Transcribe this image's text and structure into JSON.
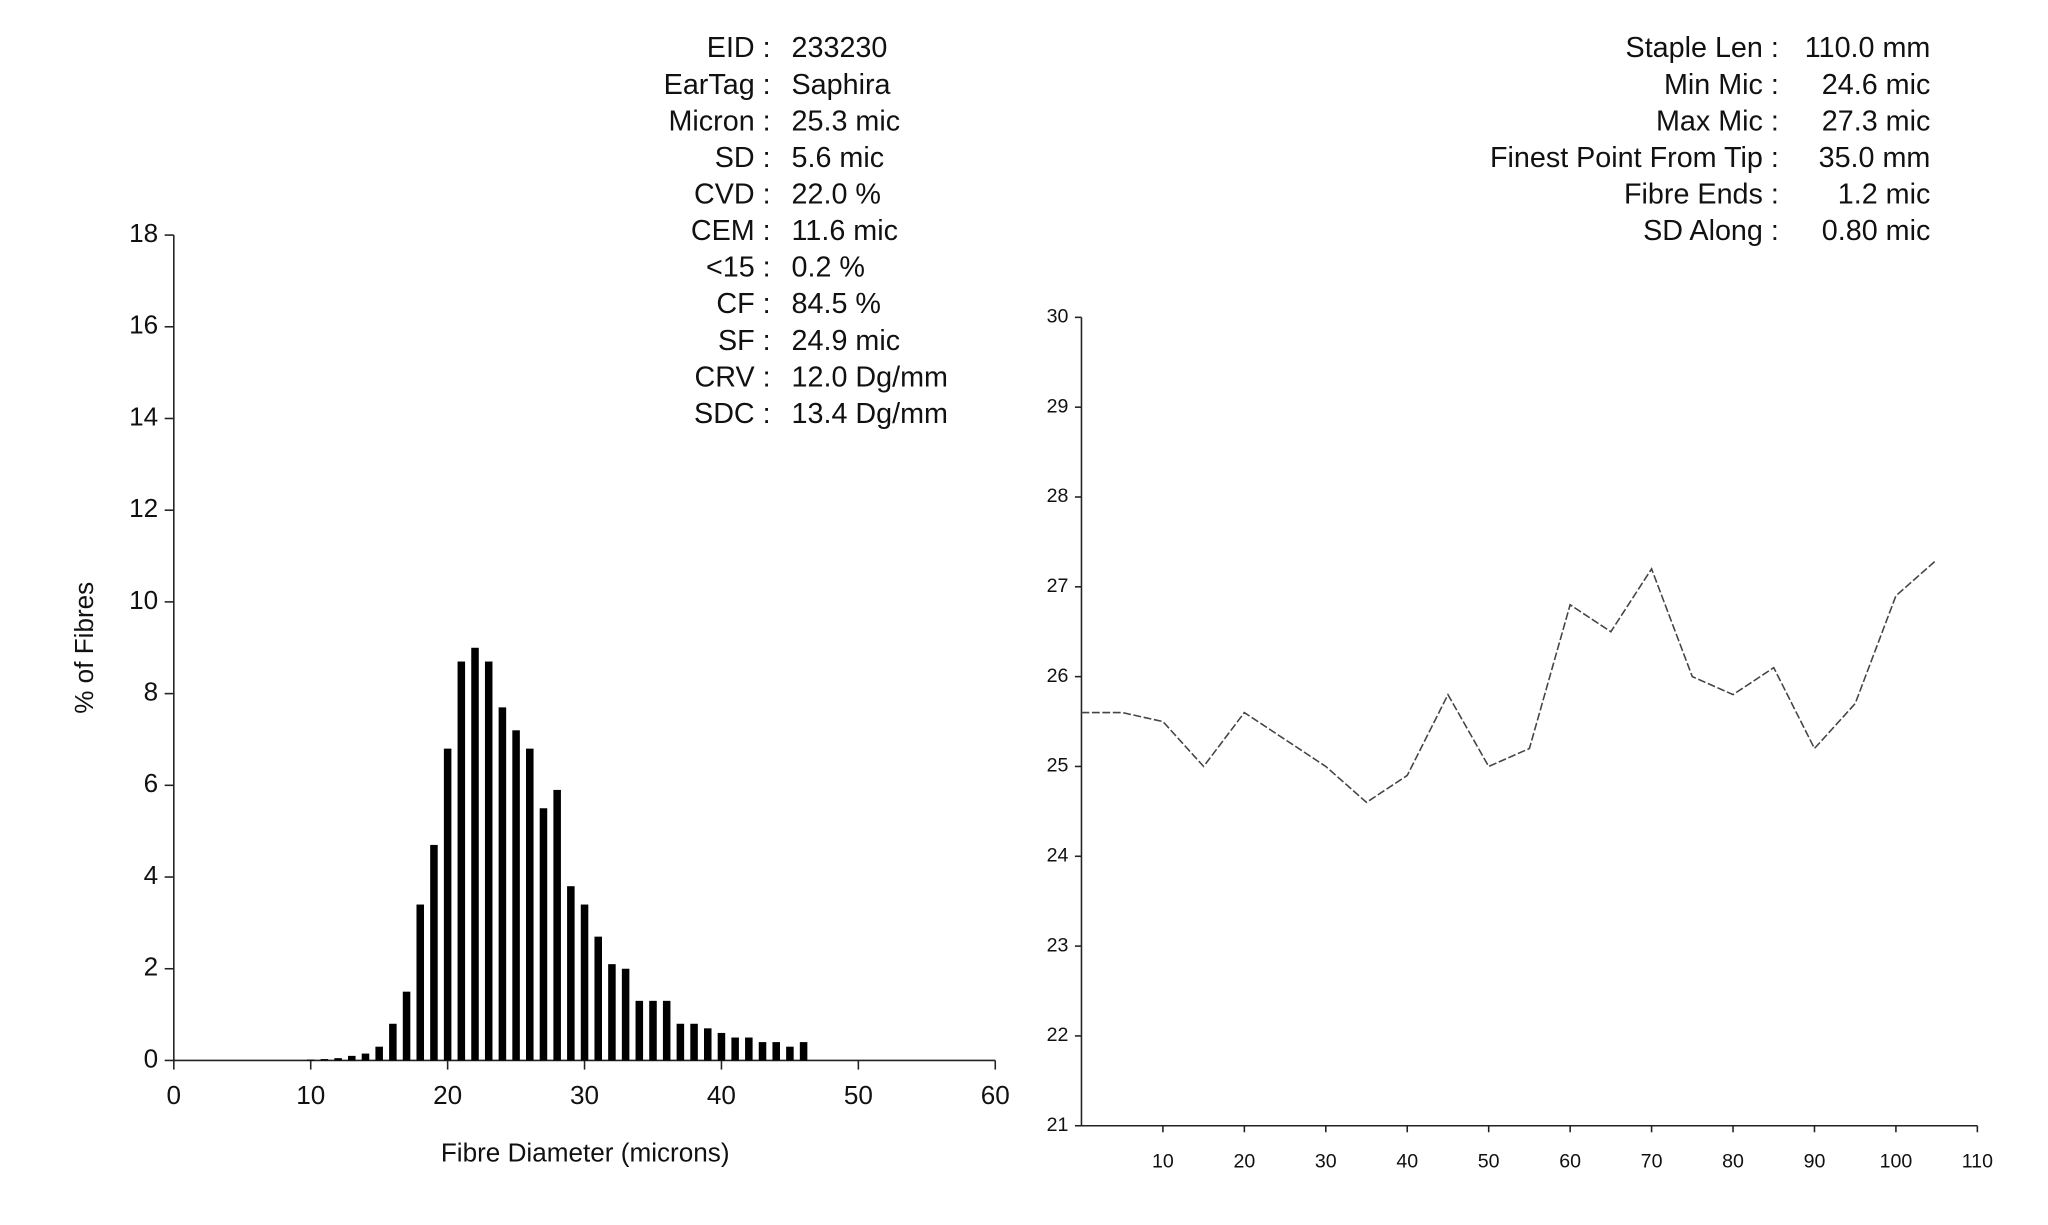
{
  "chart_data": [
    {
      "type": "histogram",
      "annotations": [
        {
          "label": "EID :",
          "value": "233230"
        },
        {
          "label": "EarTag :",
          "value": "Saphira"
        },
        {
          "label": "Micron :",
          "value": "25.3 mic"
        },
        {
          "label": "SD :",
          "value": "5.6 mic"
        },
        {
          "label": "CVD :",
          "value": "22.0 %"
        },
        {
          "label": "CEM :",
          "value": "11.6 mic"
        },
        {
          "label": "<15 :",
          "value": "0.2 %"
        },
        {
          "label": "CF :",
          "value": "84.5 %"
        },
        {
          "label": "SF :",
          "value": "24.9 mic"
        },
        {
          "label": "CRV :",
          "value": "12.0 Dg/mm"
        },
        {
          "label": "SDC :",
          "value": "13.4 Dg/mm"
        }
      ],
      "x_label": "Fibre Diameter (microns)",
      "y_label": "% of Fibres",
      "bins": [
        9.5,
        10.5,
        11.5,
        12.5,
        13.5,
        14.5,
        15.5,
        16.5,
        17.5,
        18.5,
        19.5,
        20.5,
        21.5,
        22.5,
        23.5,
        24.5,
        25.5,
        26.5,
        27.5,
        28.5,
        29.5,
        30.5,
        31.5,
        32.5,
        33.5,
        34.5,
        35.5,
        36.5,
        37.5,
        38.5,
        39.5,
        40.5,
        41.5,
        42.5,
        43.5,
        44.5,
        45.5,
        46.5
      ],
      "values": [
        0.02,
        0.03,
        0.05,
        0.1,
        0.15,
        0.3,
        0.8,
        1.5,
        3.4,
        4.7,
        6.8,
        8.7,
        9.0,
        8.7,
        7.7,
        7.2,
        6.8,
        5.5,
        5.9,
        3.8,
        3.4,
        2.7,
        2.1,
        2.0,
        1.3,
        1.3,
        1.3,
        0.8,
        0.8,
        0.7,
        0.6,
        0.5,
        0.5,
        0.4,
        0.4,
        0.3,
        0.4
      ],
      "color": "#000000",
      "xlim": [
        0,
        60
      ],
      "xticks": [
        0,
        10,
        20,
        30,
        40,
        50,
        60
      ],
      "ylim": [
        0,
        18
      ],
      "yticks": [
        0,
        2,
        4,
        6,
        8,
        10,
        12,
        14,
        16,
        18
      ]
    },
    {
      "type": "line",
      "annotations": [
        {
          "label": "Staple Len :",
          "value": "110.0 mm"
        },
        {
          "label": "Min Mic :",
          "value": "24.6 mic"
        },
        {
          "label": "Max Mic :",
          "value": "27.3 mic"
        },
        {
          "label": "Finest Point From Tip :",
          "value": "35.0 mm"
        },
        {
          "label": "Fibre Ends :",
          "value": "1.2 mic"
        },
        {
          "label": "SD Along :",
          "value": "0.80 mic"
        }
      ],
      "x": [
        0,
        5,
        10,
        15,
        20,
        25,
        30,
        35,
        40,
        45,
        50,
        55,
        60,
        65,
        70,
        75,
        80,
        85,
        90,
        95,
        100,
        105
      ],
      "y": [
        25.6,
        25.6,
        25.5,
        25.0,
        25.6,
        25.3,
        25.0,
        24.6,
        24.9,
        25.8,
        25.0,
        25.2,
        26.8,
        26.5,
        27.2,
        26.0,
        25.8,
        26.1,
        25.2,
        25.7,
        26.9,
        27.3
      ],
      "color": "#444444",
      "xlim": [
        0,
        110
      ],
      "xticks": [
        10,
        20,
        30,
        40,
        50,
        60,
        70,
        80,
        90,
        100,
        110
      ],
      "ylim": [
        21,
        30
      ],
      "yticks": [
        21,
        22,
        23,
        24,
        25,
        26,
        27,
        28,
        29,
        30
      ]
    }
  ]
}
